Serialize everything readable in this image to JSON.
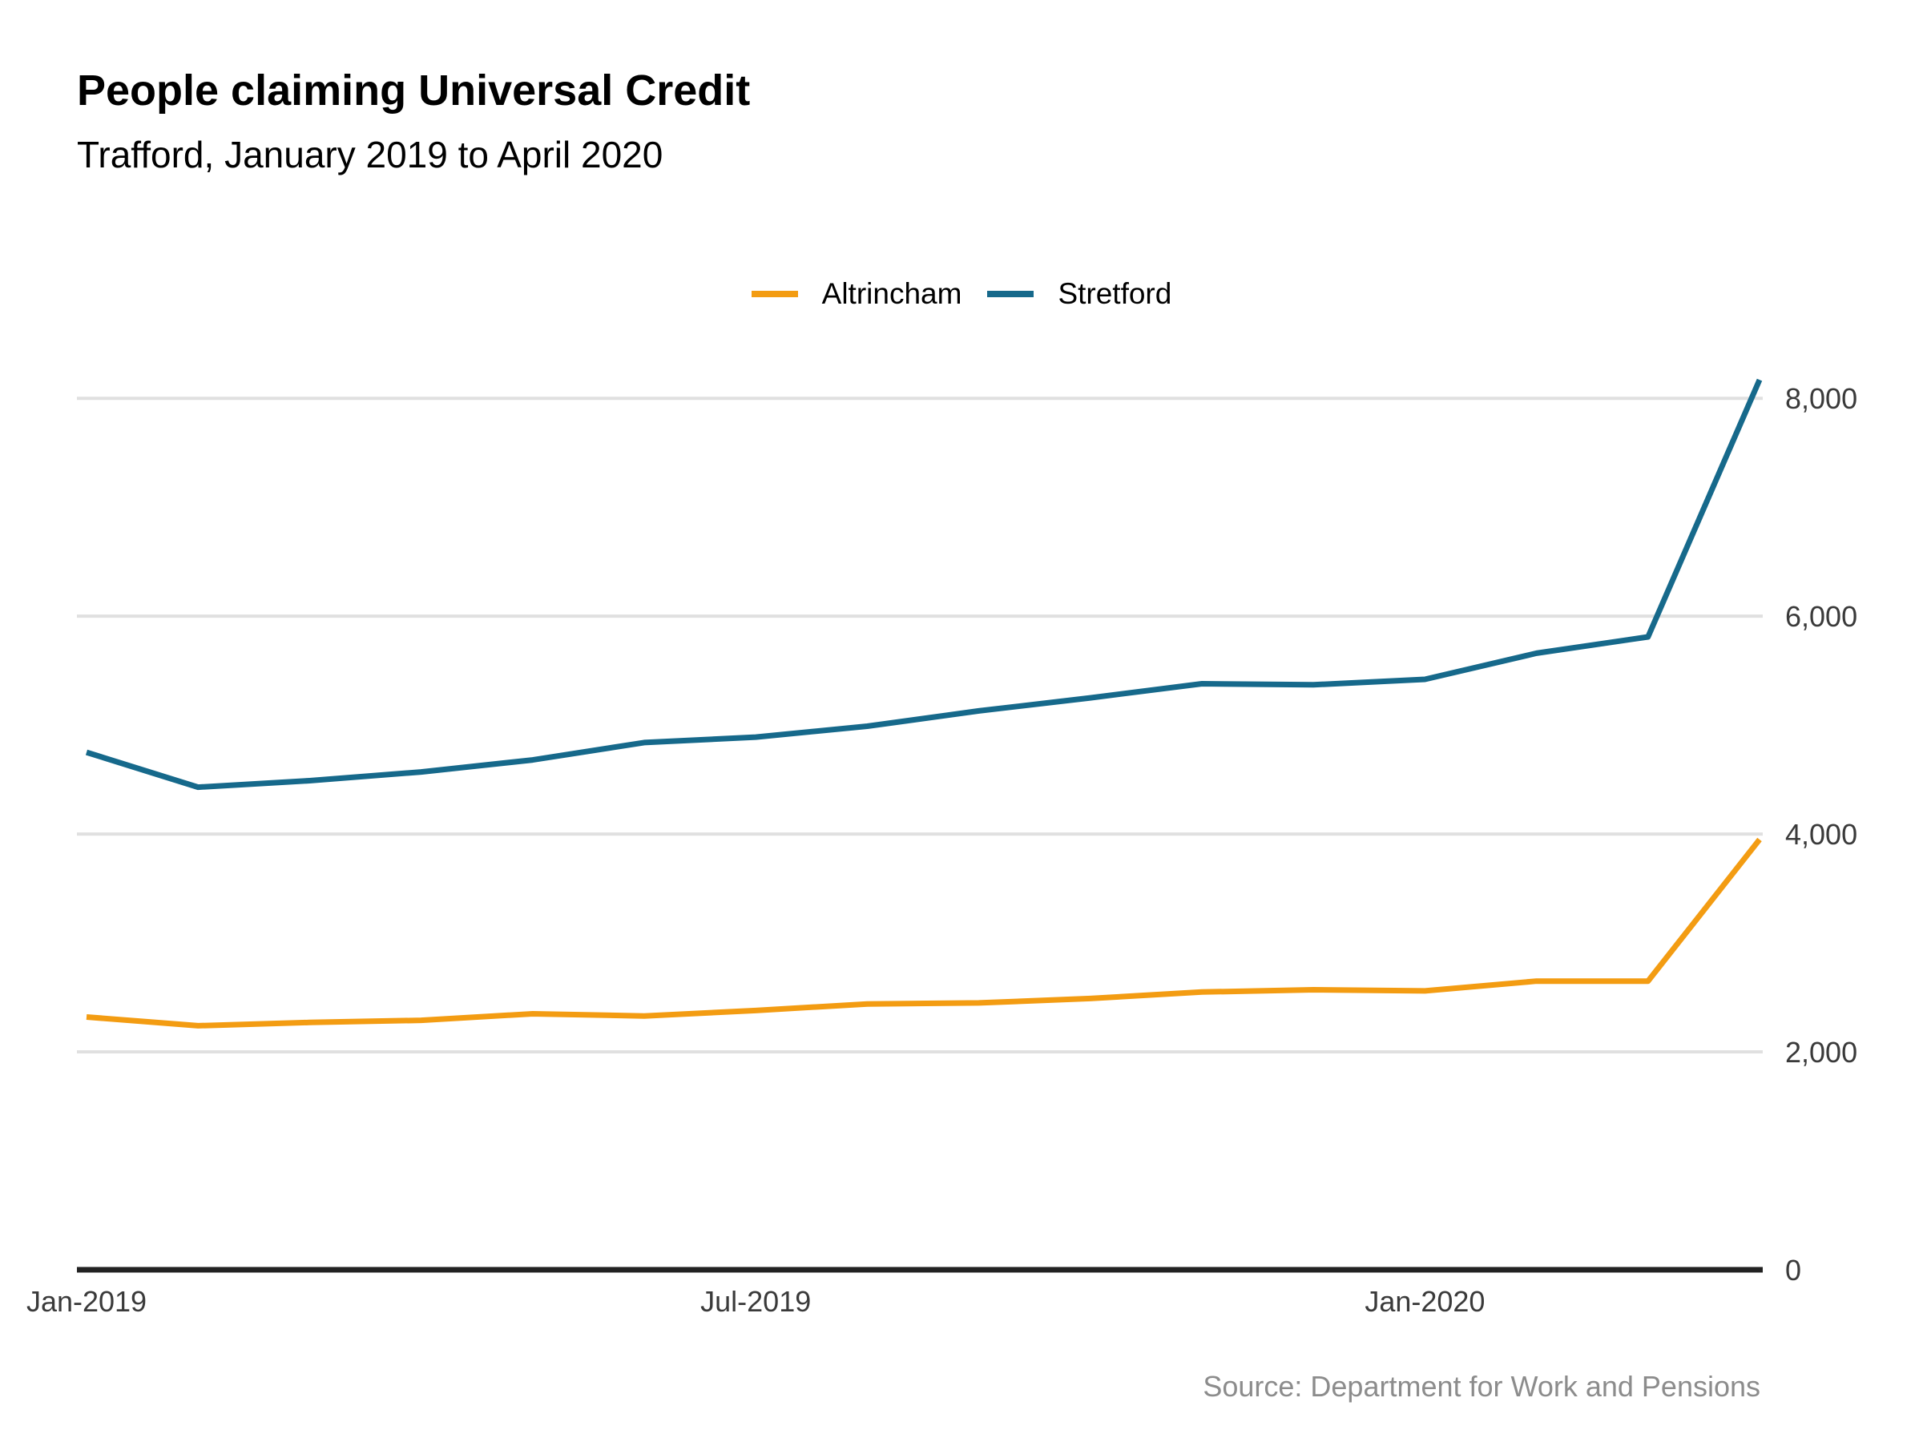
{
  "title": "People claiming Universal Credit",
  "subtitle": "Trafford, January 2019 to April 2020",
  "source": "Source: Department for Work and Pensions",
  "chart_data": {
    "type": "line",
    "title": "People claiming Universal Credit",
    "subtitle": "Trafford, January 2019 to April 2020",
    "xlabel": "",
    "ylabel": "",
    "x": [
      "2019-01",
      "2019-02",
      "2019-03",
      "2019-04",
      "2019-05",
      "2019-06",
      "2019-07",
      "2019-08",
      "2019-09",
      "2019-10",
      "2019-11",
      "2019-12",
      "2020-01",
      "2020-02",
      "2020-03",
      "2020-04"
    ],
    "x_tick_labels": [
      "Jan-2019",
      "Jul-2019",
      "Jan-2020"
    ],
    "x_tick_values": [
      "2019-01",
      "2019-07",
      "2020-01"
    ],
    "y_tick_labels": [
      "0",
      "2,000",
      "4,000",
      "6,000",
      "8,000"
    ],
    "y_tick_values": [
      0,
      2000,
      4000,
      6000,
      8000
    ],
    "ylim": [
      0,
      8200
    ],
    "y_axis_position": "right",
    "grid": true,
    "legend_position": "top",
    "series": [
      {
        "name": "Altrincham",
        "color": "#f39c12",
        "values": [
          2320,
          2240,
          2270,
          2290,
          2350,
          2330,
          2380,
          2440,
          2450,
          2490,
          2550,
          2570,
          2560,
          2650,
          2650,
          3950
        ]
      },
      {
        "name": "Stretford",
        "color": "#16698b",
        "values": [
          4750,
          4430,
          4490,
          4570,
          4680,
          4840,
          4890,
          4990,
          5130,
          5250,
          5380,
          5370,
          5420,
          5660,
          5810,
          8170
        ]
      }
    ]
  }
}
